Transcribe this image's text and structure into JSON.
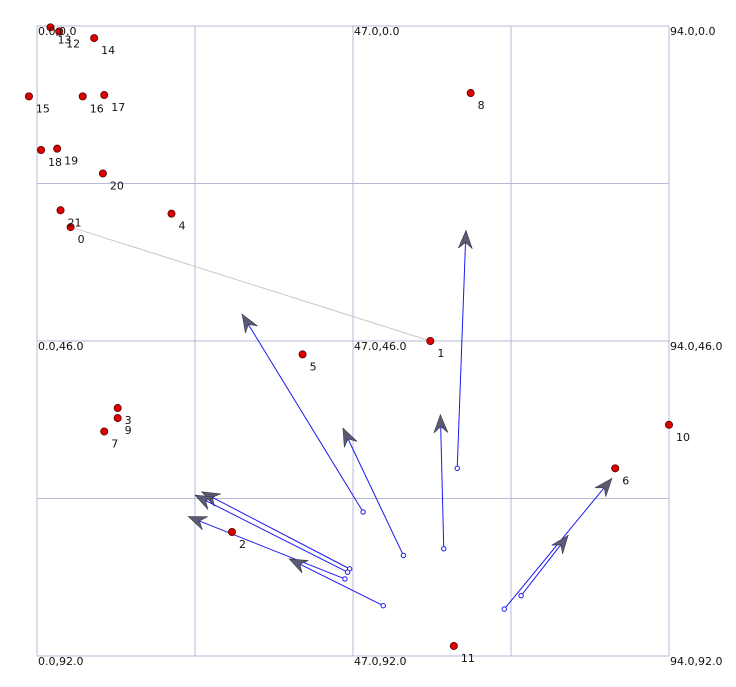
{
  "chart_data": {
    "type": "scatter",
    "title": "",
    "xlim": [
      0,
      94
    ],
    "ylim": [
      0,
      94
    ],
    "y_axis_inverted": true,
    "grid": true,
    "grid_x": [
      0,
      23.5,
      47,
      70.5,
      94
    ],
    "grid_y": [
      0,
      23.5,
      47,
      70.5,
      94
    ],
    "corner_labels": [
      {
        "text": "0.0,0.0",
        "x": 0,
        "y": 0
      },
      {
        "text": "47.0,0.0",
        "x": 47,
        "y": 0
      },
      {
        "text": "94.0,0.0",
        "x": 94,
        "y": 0
      },
      {
        "text": "0.0,46.0",
        "x": 0,
        "y": 47
      },
      {
        "text": "47.0,46.0",
        "x": 47,
        "y": 47
      },
      {
        "text": "94.0,46.0",
        "x": 94,
        "y": 47
      },
      {
        "text": "0.0,92.0",
        "x": 0,
        "y": 94
      },
      {
        "text": "47.0,92.0",
        "x": 47,
        "y": 94
      },
      {
        "text": "94.0,92.0",
        "x": 94,
        "y": 94
      }
    ],
    "points": [
      {
        "label": "0",
        "x": 5,
        "y": 30
      },
      {
        "label": "1",
        "x": 58.5,
        "y": 47
      },
      {
        "label": "2",
        "x": 29,
        "y": 75.5
      },
      {
        "label": "3",
        "x": 12,
        "y": 57
      },
      {
        "label": "4",
        "x": 20,
        "y": 28
      },
      {
        "label": "5",
        "x": 39.5,
        "y": 49
      },
      {
        "label": "6",
        "x": 86,
        "y": 66
      },
      {
        "label": "7",
        "x": 10,
        "y": 60.5
      },
      {
        "label": "8",
        "x": 64.5,
        "y": 10
      },
      {
        "label": "9",
        "x": 12,
        "y": 58.5
      },
      {
        "label": "10",
        "x": 94,
        "y": 59.5
      },
      {
        "label": "11",
        "x": 62,
        "y": 92.5
      },
      {
        "label": "12",
        "x": 3.3,
        "y": 0.8
      },
      {
        "label": "13",
        "x": 2,
        "y": 0.2
      },
      {
        "label": "14",
        "x": 8.5,
        "y": 1.8
      },
      {
        "label": "15",
        "x": -1.2,
        "y": 10.5
      },
      {
        "label": "16",
        "x": 6.8,
        "y": 10.5
      },
      {
        "label": "17",
        "x": 10,
        "y": 10.3
      },
      {
        "label": "18",
        "x": 0.6,
        "y": 18.5
      },
      {
        "label": "19",
        "x": 3,
        "y": 18.3
      },
      {
        "label": "20",
        "x": 9.8,
        "y": 22
      },
      {
        "label": "21",
        "x": 3.5,
        "y": 27.5
      }
    ],
    "links": [
      {
        "from": "0",
        "to": "1"
      }
    ],
    "vectors": [
      {
        "x0": 62.5,
        "y0": 66,
        "x1": 63.8,
        "y1": 30.5
      },
      {
        "x0": 60.5,
        "y0": 78,
        "x1": 60,
        "y1": 58
      },
      {
        "x0": 54.5,
        "y0": 79,
        "x1": 45.5,
        "y1": 60
      },
      {
        "x0": 48.5,
        "y0": 72.5,
        "x1": 30.5,
        "y1": 43
      },
      {
        "x0": 46.5,
        "y0": 81,
        "x1": 24.5,
        "y1": 69.5
      },
      {
        "x0": 46.2,
        "y0": 81.5,
        "x1": 23.5,
        "y1": 70
      },
      {
        "x0": 45.8,
        "y0": 82.5,
        "x1": 22.5,
        "y1": 73.2
      },
      {
        "x0": 51.5,
        "y0": 86.5,
        "x1": 37.5,
        "y1": 79.5
      },
      {
        "x0": 69.5,
        "y0": 87,
        "x1": 85.5,
        "y1": 67.5
      },
      {
        "x0": 72,
        "y0": 85,
        "x1": 79,
        "y1": 76
      }
    ]
  }
}
